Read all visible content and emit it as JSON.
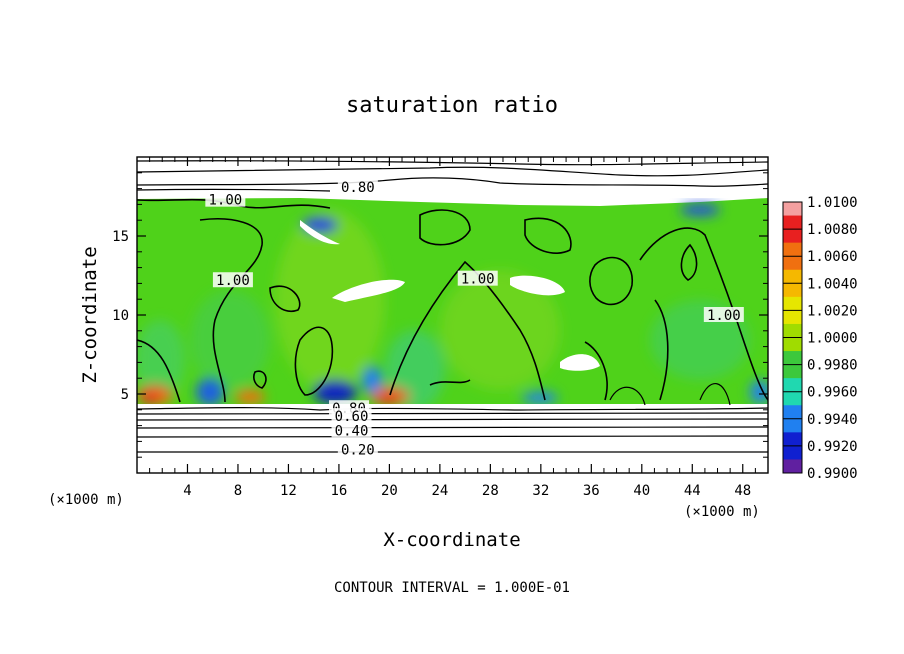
{
  "chart_data": {
    "type": "heatmap",
    "title": "saturation ratio",
    "xlabel": "X-coordinate",
    "ylabel": "Z-coordinate",
    "x_units_left": "(×1000 m)",
    "x_units_right": "(×1000 m)",
    "xlim": [
      0,
      50
    ],
    "ylim": [
      0,
      20
    ],
    "x_ticks": [
      4,
      8,
      12,
      16,
      20,
      24,
      28,
      32,
      36,
      40,
      44,
      48
    ],
    "y_ticks": [
      5,
      10,
      15
    ],
    "footer": "CONTOUR INTERVAL = 1.000E-01",
    "colorbar": {
      "levels": [
        "1.0100",
        "1.0080",
        "1.0060",
        "1.0040",
        "1.0020",
        "1.0000",
        "0.9980",
        "0.9960",
        "0.9940",
        "0.9920",
        "0.9900"
      ],
      "colors": [
        "#f4a0a0",
        "#e82020",
        "#f07010",
        "#f5b800",
        "#e6e600",
        "#a0dc00",
        "#3cc83c",
        "#20d8b0",
        "#2080f0",
        "#1020d0",
        "#6020a0"
      ]
    },
    "contour_labels": [
      {
        "text": "0.80",
        "x": 17.5,
        "y": 18.1
      },
      {
        "text": "1.00",
        "x": 7.0,
        "y": 17.3
      },
      {
        "text": "1.00",
        "x": 7.6,
        "y": 12.2
      },
      {
        "text": "1.00",
        "x": 27.0,
        "y": 12.3
      },
      {
        "text": "1.00",
        "x": 46.5,
        "y": 10.0
      },
      {
        "text": "0.80",
        "x": 16.8,
        "y": 4.1
      },
      {
        "text": "0.60",
        "x": 17.0,
        "y": 3.6
      },
      {
        "text": "0.40",
        "x": 17.0,
        "y": 2.7
      },
      {
        "text": "0.20",
        "x": 17.5,
        "y": 1.5
      }
    ]
  }
}
